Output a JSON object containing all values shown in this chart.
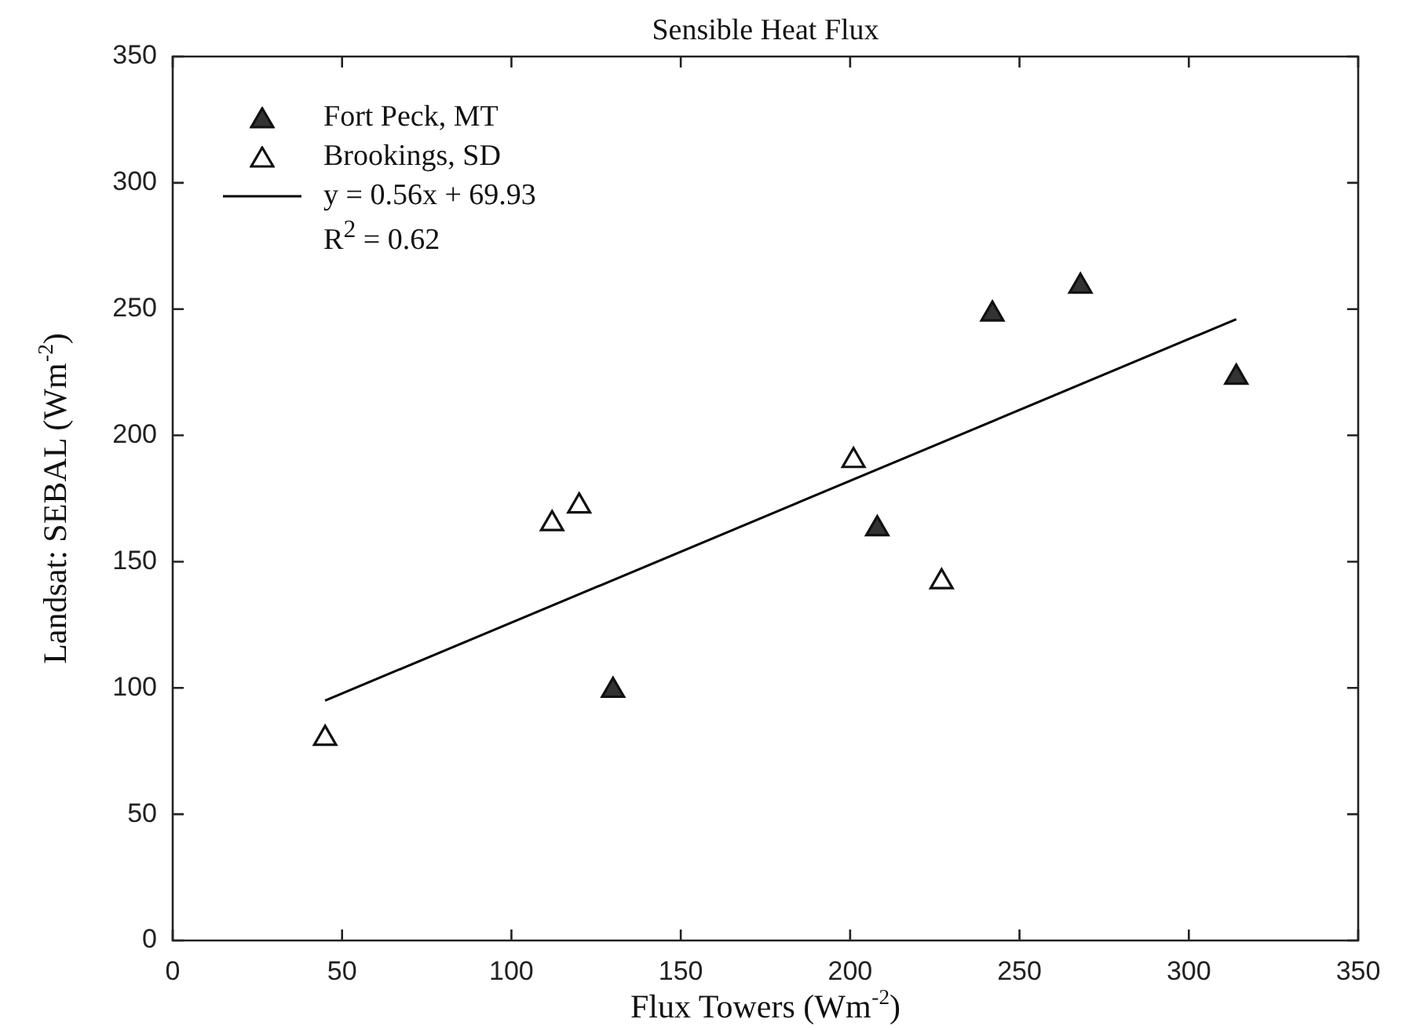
{
  "chart_data": {
    "type": "scatter",
    "title": "Sensible Heat Flux",
    "xlabel": "Flux Towers (Wm$^{-2}$)",
    "ylabel": "Landsat: SEBAL (Wm$^{-2}$)",
    "xlim": [
      0,
      350
    ],
    "xticks": [
      0,
      50,
      100,
      150,
      200,
      250,
      300,
      350
    ],
    "ylim": [
      0,
      350
    ],
    "yticks": [
      0,
      50,
      100,
      150,
      200,
      250,
      300,
      350
    ],
    "grid": false,
    "legend": "top left",
    "marker": "triangle",
    "annotations": [
      "R$^{2}$ = 0.62"
    ],
    "series": [
      {
        "name": "Fort Peck, MT",
        "color": "#333333",
        "x": [
          130,
          208,
          242,
          268,
          314
        ],
        "values": [
          99,
          163,
          248,
          259,
          223
        ]
      },
      {
        "name": "Brookings, SD",
        "color": "#ffffff",
        "x": [
          45,
          112,
          120,
          201,
          227
        ],
        "values": [
          80,
          165,
          172,
          190,
          142
        ]
      },
      {
        "name": "y = 0.56x + 69.93",
        "type": "line",
        "color": "#000000",
        "line_style": "solid",
        "marker": "none",
        "x": [
          45,
          314
        ],
        "values": [
          95,
          246
        ]
      }
    ]
  }
}
